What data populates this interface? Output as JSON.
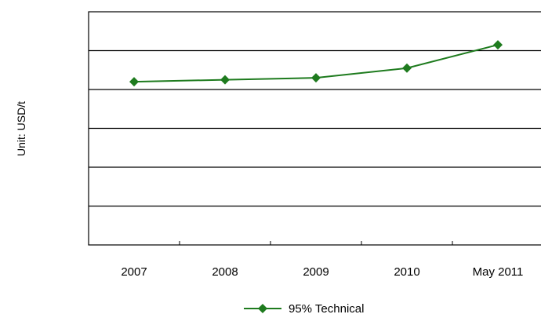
{
  "chart_data": {
    "type": "line",
    "title": "",
    "xlabel": "",
    "ylabel": "Unit: USD/t",
    "categories": [
      "2007",
      "2008",
      "2009",
      "2010",
      "May 2011"
    ],
    "series": [
      {
        "name": "95% Technical",
        "values": [
          4.2,
          4.25,
          4.3,
          4.55,
          5.15
        ],
        "color": "#1e7b1e",
        "marker": "diamond"
      }
    ],
    "ylim": [
      0,
      6
    ],
    "grid": true,
    "legend": "bottom-center",
    "y_tick_labels_visible": false
  }
}
